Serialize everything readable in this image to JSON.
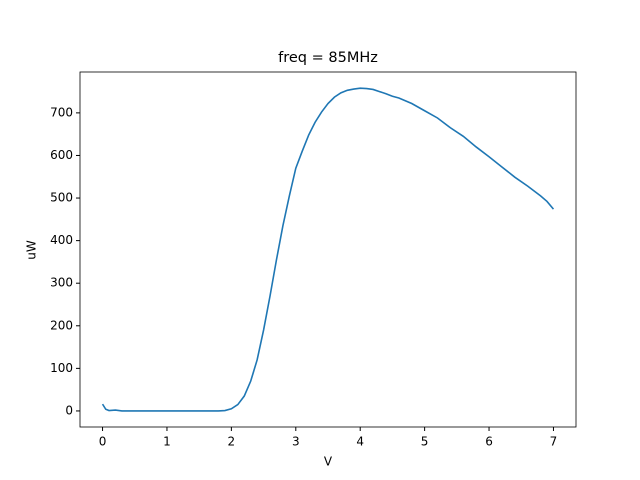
{
  "chart_data": {
    "type": "line",
    "title": "freq = 85MHz",
    "xlabel": "V",
    "ylabel": "uW",
    "x": [
      0,
      0.05,
      0.1,
      0.2,
      0.3,
      0.5,
      0.8,
      1.0,
      1.3,
      1.6,
      1.8,
      1.9,
      2.0,
      2.1,
      2.2,
      2.3,
      2.4,
      2.5,
      2.6,
      2.7,
      2.8,
      2.9,
      3.0,
      3.1,
      3.2,
      3.3,
      3.4,
      3.5,
      3.6,
      3.7,
      3.8,
      3.9,
      4.0,
      4.1,
      4.2,
      4.3,
      4.4,
      4.5,
      4.6,
      4.8,
      5.0,
      5.2,
      5.4,
      5.6,
      5.8,
      6.0,
      6.2,
      6.4,
      6.6,
      6.8,
      6.9,
      7.0
    ],
    "series": [
      {
        "color": "#1f77b4",
        "values": [
          16,
          4,
          1,
          2,
          0,
          0,
          0,
          0,
          0,
          0,
          0,
          1,
          5,
          15,
          35,
          70,
          120,
          190,
          270,
          355,
          435,
          505,
          570,
          610,
          648,
          678,
          702,
          722,
          737,
          747,
          753,
          756,
          758,
          757,
          755,
          750,
          745,
          739,
          735,
          722,
          705,
          688,
          665,
          645,
          620,
          597,
          573,
          549,
          528,
          505,
          492,
          474
        ]
      }
    ],
    "xlim": [
      -0.35,
      7.35
    ],
    "xticks": [
      0,
      1,
      2,
      3,
      4,
      5,
      6,
      7
    ],
    "ylim": [
      -37.7,
      796
    ],
    "yticks": [
      0,
      100,
      200,
      300,
      400,
      500,
      600,
      700
    ]
  }
}
